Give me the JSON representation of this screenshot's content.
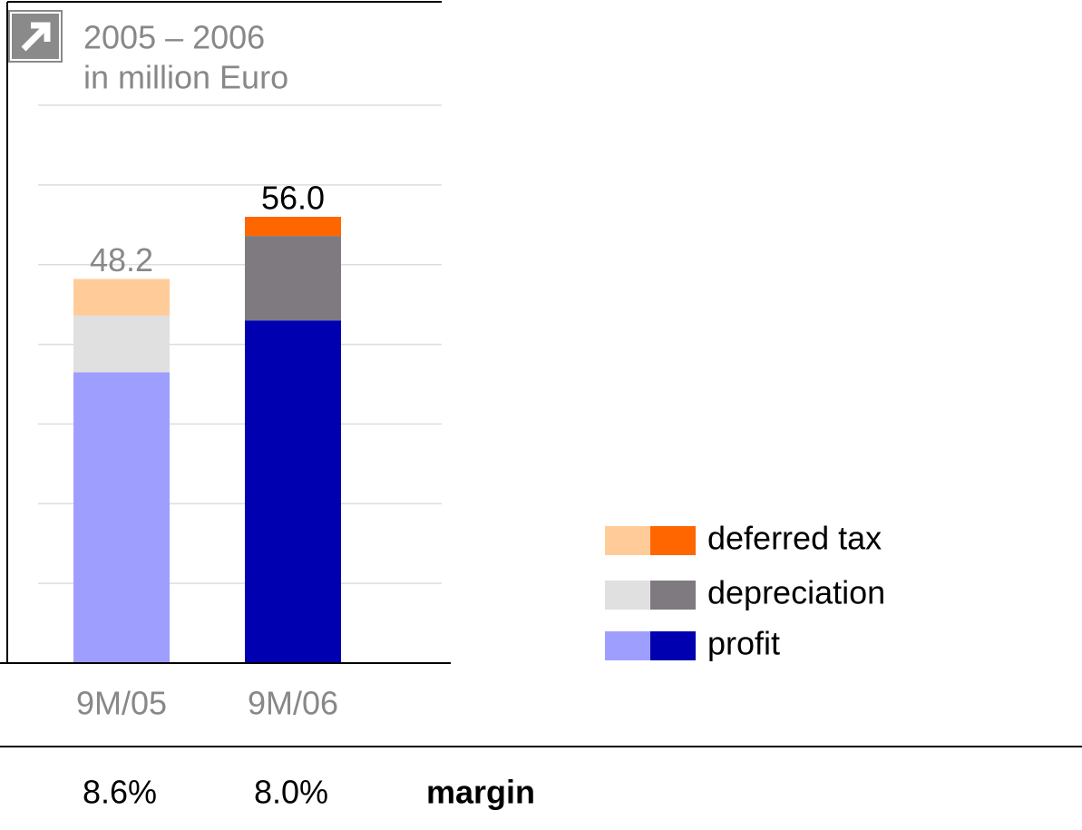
{
  "chart_data": {
    "type": "stacked_bar",
    "title": "2005 – 2006",
    "subtitle": "in million Euro",
    "categories": [
      "9M/05",
      "9M/06"
    ],
    "series": [
      {
        "name": "profit",
        "colors": [
          "#9e9eff",
          "#0000b0"
        ],
        "values": [
          36.5,
          43.0
        ]
      },
      {
        "name": "depreciation",
        "colors": [
          "#e0e0e0",
          "#7f7a80"
        ],
        "values": [
          7.1,
          10.6
        ]
      },
      {
        "name": "deferred tax",
        "colors": [
          "#ffcc99",
          "#ff6600"
        ],
        "values": [
          4.6,
          2.4
        ]
      }
    ],
    "totals": {
      "values": [
        48.2,
        56.0
      ],
      "value_labels": [
        "48.2",
        "56.0"
      ],
      "colors": [
        "#888888",
        "#000000"
      ]
    },
    "margins": {
      "label": "margin",
      "values": [
        8.6,
        8.0
      ],
      "value_labels": [
        "8.6%",
        "8.0%"
      ]
    },
    "ylim": [
      0,
      70
    ],
    "yticks": [
      0,
      10,
      20,
      30,
      40,
      50,
      60,
      70
    ],
    "grid": true
  }
}
